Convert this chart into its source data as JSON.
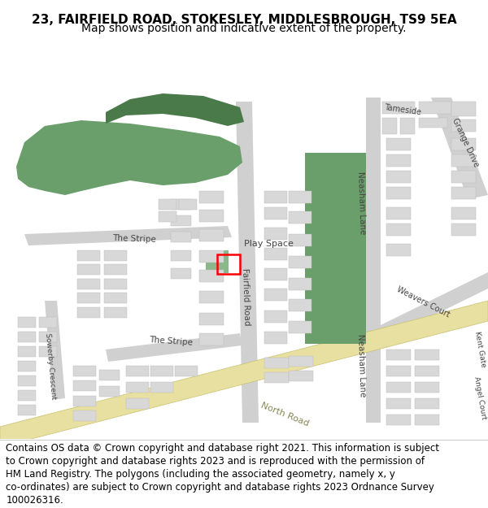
{
  "title_line1": "23, FAIRFIELD ROAD, STOKESLEY, MIDDLESBROUGH, TS9 5EA",
  "title_line2": "Map shows position and indicative extent of the property.",
  "footer_lines": [
    "Contains OS data © Crown copyright and database right 2021. This information is subject",
    "to Crown copyright and database rights 2023 and is reproduced with the permission of",
    "HM Land Registry. The polygons (including the associated geometry, namely x, y",
    "co-ordinates) are subject to Crown copyright and database rights 2023 Ordnance Survey",
    "100026316."
  ],
  "map_bg": "#ffffff",
  "road_color": "#d0d0d0",
  "building_color": "#d8d8d8",
  "building_edge": "#bbbbbb",
  "green_color": "#6a9e6a",
  "green_dark": "#4a7a4a",
  "north_road_color": "#e8e0a0",
  "north_road_edge": "#c8c070",
  "property_color": "#ff0000",
  "title_fontsize": 11,
  "subtitle_fontsize": 10,
  "footer_fontsize": 8.5
}
